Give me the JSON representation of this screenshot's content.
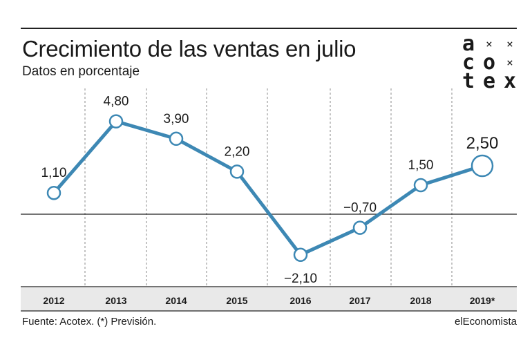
{
  "header": {
    "title": "Crecimiento de las ventas en julio",
    "subtitle": "Datos en porcentaje"
  },
  "logo": {
    "rows": [
      [
        "a",
        "×",
        "×"
      ],
      [
        "c",
        "o",
        "×"
      ],
      [
        "t",
        "e",
        "x"
      ]
    ]
  },
  "chart_data": {
    "type": "line",
    "title": "Crecimiento de las ventas en julio",
    "subtitle": "Datos en porcentaje",
    "categories": [
      "2012",
      "2013",
      "2014",
      "2015",
      "2016",
      "2017",
      "2018",
      "2019*"
    ],
    "series": [
      {
        "values": [
          1.1,
          4.8,
          3.9,
          2.2,
          -2.1,
          -0.7,
          1.5,
          2.5
        ]
      }
    ],
    "data_labels": [
      "1,10",
      "4,80",
      "3,90",
      "2,20",
      "−2,10",
      "−0,70",
      "1,50",
      "2,50"
    ],
    "highlight_last": true,
    "ylim": [
      -4.1,
      7.0
    ],
    "grid": "vertical-dashed",
    "line_color": "#3d88b4"
  },
  "footer": {
    "source": "Fuente: Acotex. (*) Previsión.",
    "credit": "elEconomista"
  }
}
